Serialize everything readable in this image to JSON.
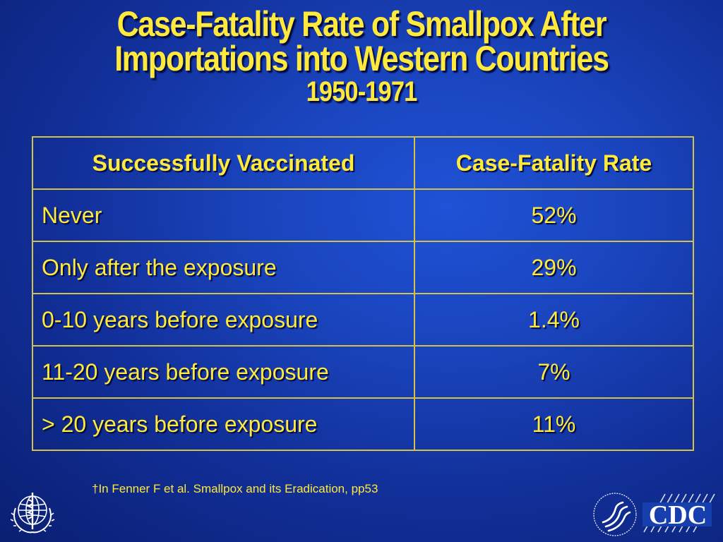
{
  "title": {
    "line1": "Case-Fatality Rate of Smallpox After",
    "line2": "Importations into Western Countries",
    "line3": "1950-1971"
  },
  "table": {
    "headers": [
      "Successfully Vaccinated",
      "Case-Fatality Rate"
    ],
    "rows": [
      [
        "Never",
        "52%"
      ],
      [
        "Only after the exposure",
        "29%"
      ],
      [
        "0-10 years before exposure",
        "1.4%"
      ],
      [
        "11-20 years before exposure",
        "7%"
      ],
      [
        "> 20 years before exposure",
        "11%"
      ]
    ]
  },
  "footnote": "†In Fenner F et al. Smallpox and its Eradication, pp53",
  "logos": {
    "who": "who-emblem-icon",
    "hhs": "hhs-eagle-icon",
    "cdc_text": "CDC"
  },
  "colors": {
    "text": "#ffe93c",
    "border": "#d2c24a",
    "background": "#1a44bd"
  }
}
